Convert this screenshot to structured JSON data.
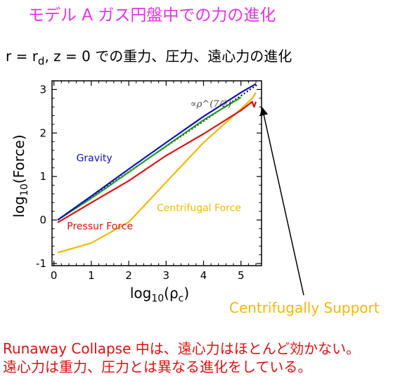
{
  "slide": {
    "title": "モデル A ガス円盤中での力の進化",
    "subtitle": "r = r_d, z = 0 での重力、圧力、遠心力の進化",
    "subtitle_parts": {
      "pre": "r = r",
      "sub": "d",
      "post": ",  z = 0 での重力、圧力、遠心力の進化"
    },
    "callout": "Centrifugally Support",
    "footer_line1": "Runaway Collapse 中は、遠心力はほとんど効かない。",
    "footer_line2": "遠心力は重力、圧力とは異なる進化をしている。"
  },
  "colors": {
    "gravity": "#1010c0",
    "pressure": "#e01010",
    "centrifugal": "#f5b800",
    "green": "#22a022",
    "reference": "#000000",
    "title": "#e633e6"
  },
  "chart_data": {
    "type": "line",
    "xlabel": "log10(ρc)",
    "xlabel_parts": {
      "pre": "log",
      "sub1": "10",
      "mid": "(ρ",
      "sub2": "c",
      "post": ")"
    },
    "ylabel": "log10(Force)",
    "ylabel_parts": {
      "pre": "log",
      "sub": "10",
      "post": "(Force)"
    },
    "xlim": [
      -0.05,
      5.55
    ],
    "ylim": [
      -1.05,
      3.2
    ],
    "xticks": [
      0,
      1,
      2,
      3,
      4,
      5
    ],
    "yticks": [
      -1,
      0,
      1,
      2,
      3
    ],
    "xtick_labels": [
      "0",
      "1",
      "2",
      "3",
      "4",
      "5"
    ],
    "ytick_labels": [
      "-1",
      "0",
      "1",
      "2",
      "3"
    ],
    "grid": false,
    "annotation": "∝ρ^(7/2)",
    "series": [
      {
        "name": "Gravity",
        "color_key": "gravity",
        "x": [
          0.1,
          1,
          2,
          3,
          4,
          5,
          5.4
        ],
        "y": [
          0.0,
          0.55,
          1.17,
          1.78,
          2.38,
          2.93,
          3.13
        ]
      },
      {
        "name": "Pressur Force",
        "color_key": "pressure",
        "x": [
          0.1,
          1,
          2,
          3,
          4,
          5,
          5.3,
          5.35,
          5.4
        ],
        "y": [
          -0.06,
          0.4,
          0.9,
          1.48,
          1.98,
          2.52,
          2.72,
          2.6,
          2.72
        ]
      },
      {
        "name": "Centrifugal Force",
        "color_key": "centrifugal",
        "x": [
          0.1,
          1,
          2,
          3,
          4,
          5,
          5.3,
          5.4
        ],
        "y": [
          -0.75,
          -0.53,
          -0.05,
          0.87,
          1.78,
          2.55,
          2.8,
          2.93
        ]
      },
      {
        "name": "",
        "color_key": "green",
        "x": [
          0.1,
          1,
          2,
          3,
          4,
          5
        ],
        "y": [
          0.0,
          0.5,
          1.1,
          1.7,
          2.3,
          2.82
        ]
      }
    ],
    "reference_line": {
      "x": [
        0.1,
        5.45
      ],
      "y": [
        0.0,
        3.12
      ]
    },
    "series_labels": [
      {
        "text": "Gravity",
        "color_key": "gravity",
        "x": 0.6,
        "y": 1.35
      },
      {
        "text": "Pressur Force",
        "color_key": "pressure",
        "x": 0.35,
        "y": -0.22
      },
      {
        "text": "Centrifugal Force",
        "color_key": "centrifugal",
        "x": 2.75,
        "y": 0.2
      }
    ]
  }
}
